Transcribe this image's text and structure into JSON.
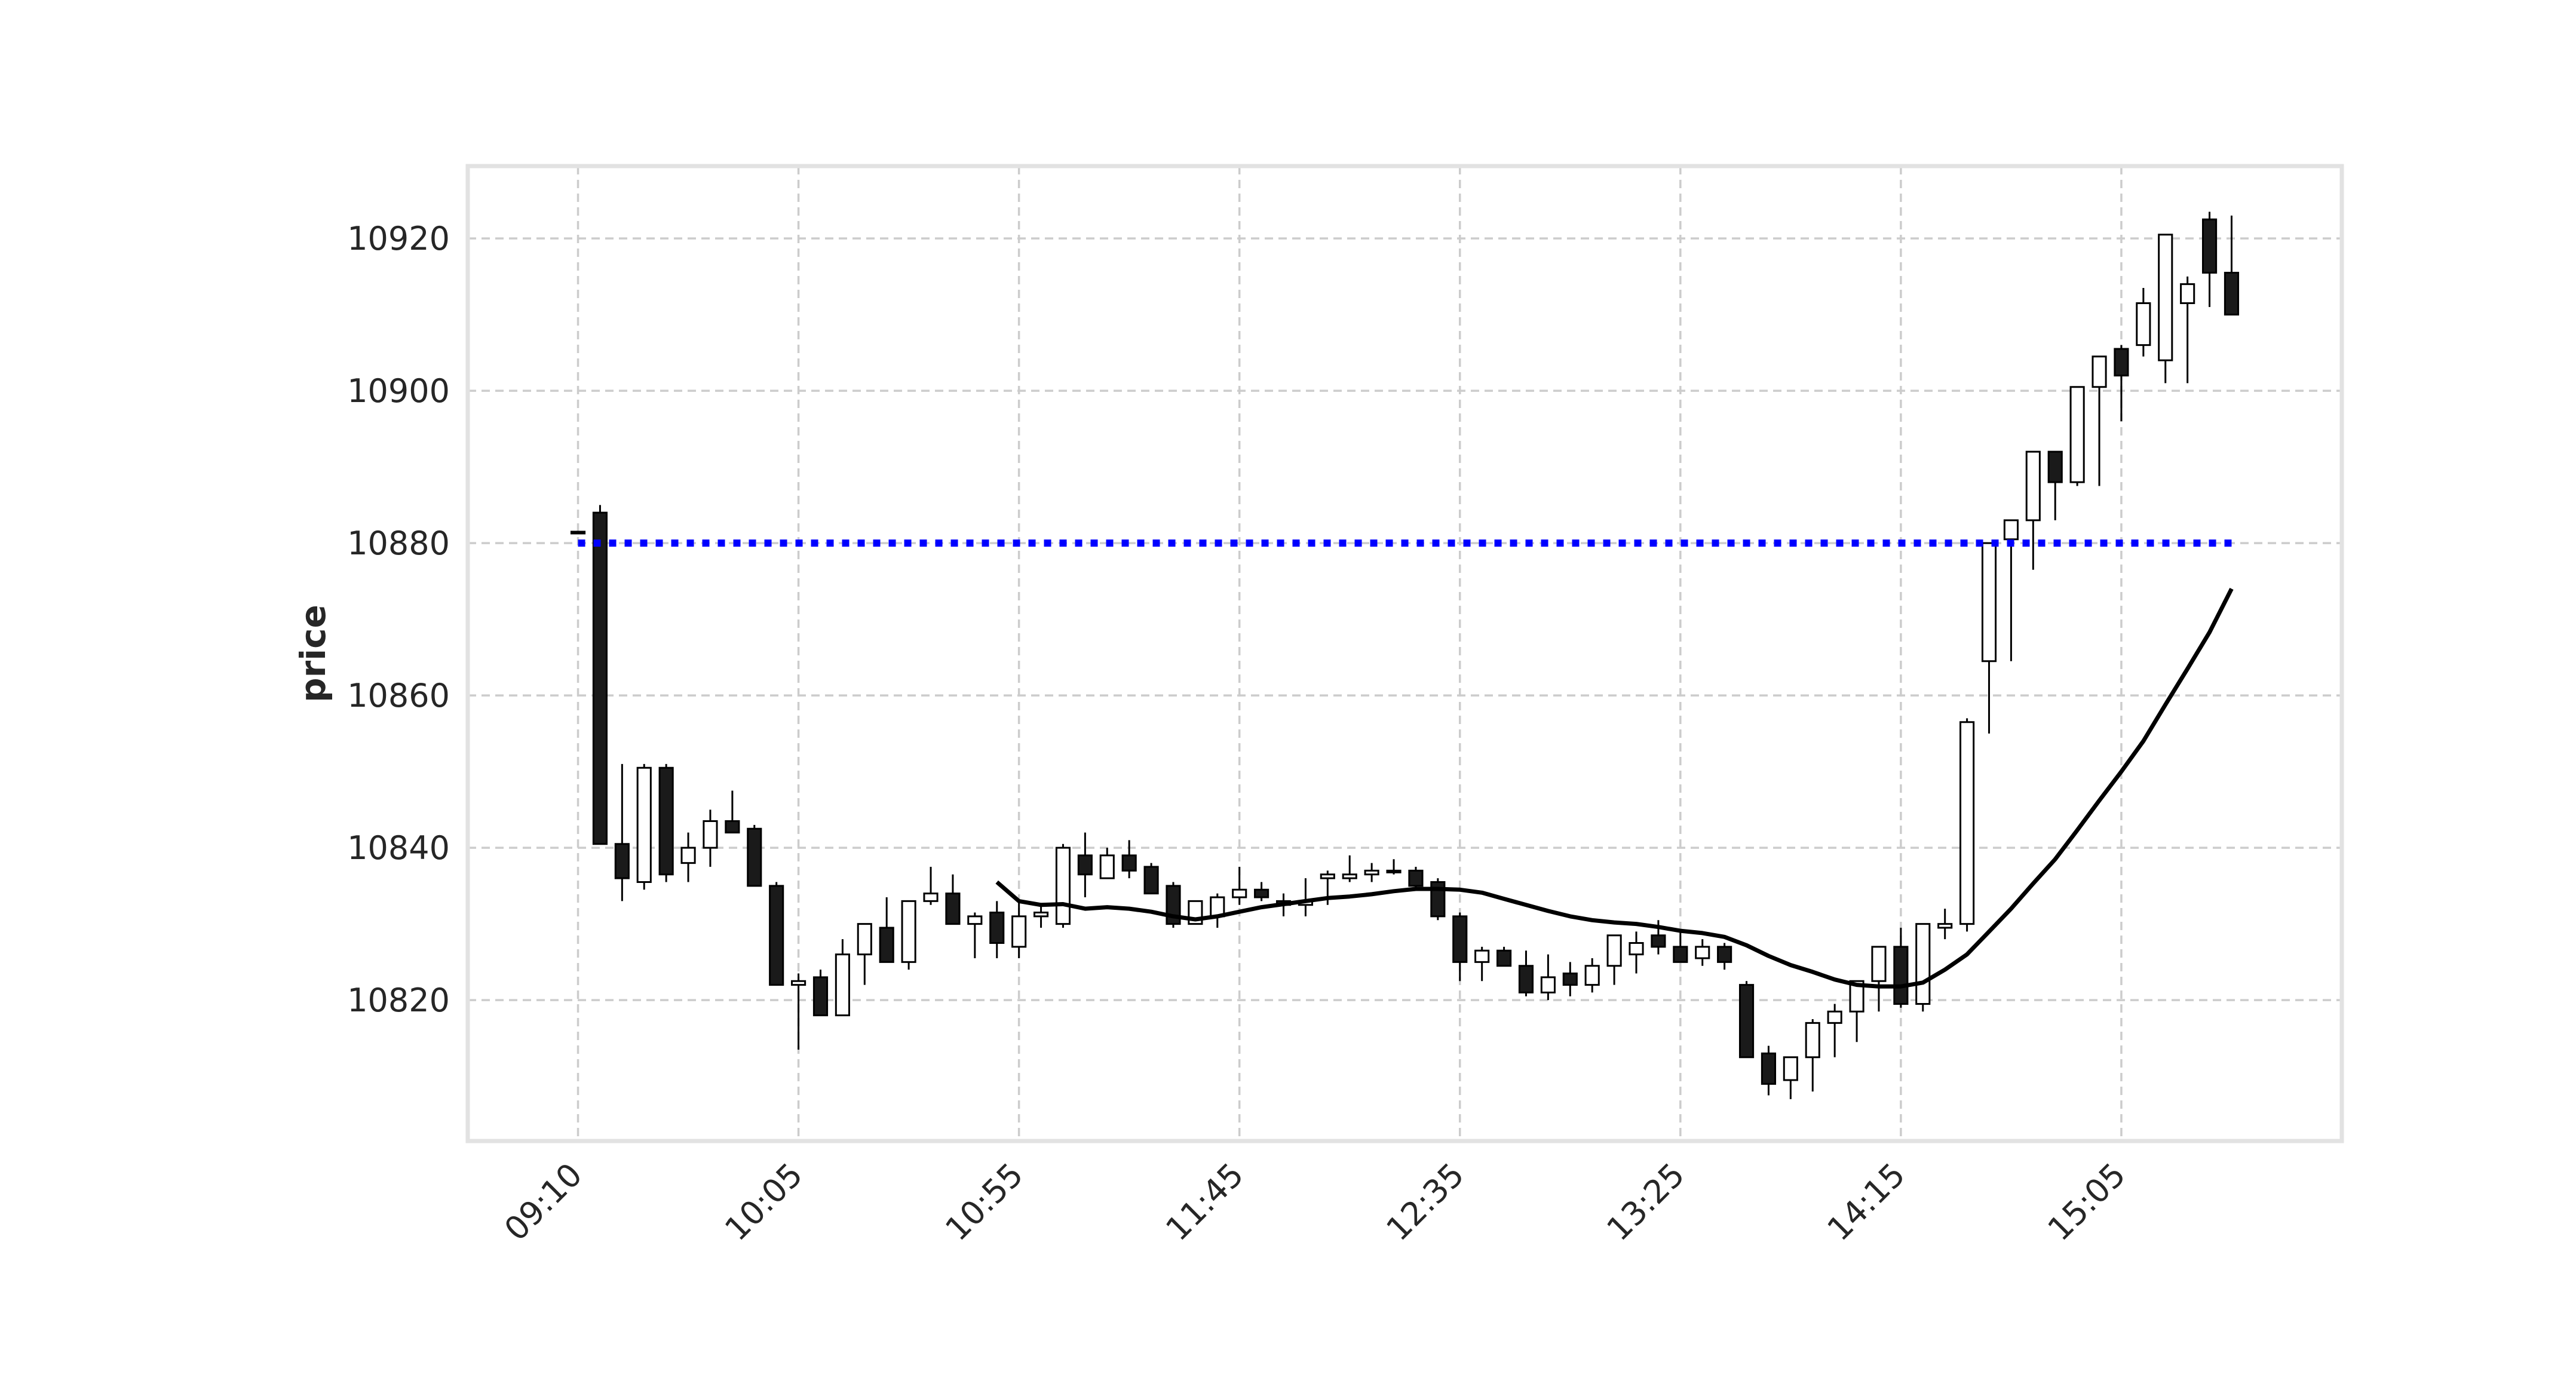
{
  "chart_data": {
    "type": "candlestick",
    "title": "",
    "xlabel": "",
    "ylabel": "price",
    "grid": true,
    "ylim": [
      10801.5,
      10929.5
    ],
    "yticks": [
      10820,
      10840,
      10860,
      10880,
      10900,
      10920
    ],
    "xticks": [
      "09:10",
      "10:05",
      "10:55",
      "11:45",
      "12:35",
      "13:25",
      "14:15",
      "15:05"
    ],
    "xtick_positions": [
      0,
      10,
      20,
      30,
      40,
      50,
      60,
      70
    ],
    "xlim": [
      -5,
      80
    ],
    "colors": {
      "up_fill": "#ffffff",
      "down_fill": "#1a1a1a",
      "outline": "#000000",
      "moving_average": "#000000",
      "reference_line": "#0000ff"
    },
    "reference_line": {
      "value": 10880,
      "style": "dotted",
      "x_start": 0,
      "x_end": 75
    },
    "moving_average": {
      "x": [
        19,
        20,
        21,
        22,
        23,
        24,
        25,
        26,
        27,
        28,
        29,
        30,
        31,
        32,
        33,
        34,
        35,
        36,
        37,
        38,
        39,
        40,
        41,
        42,
        43,
        44,
        45,
        46,
        47,
        48,
        49,
        50,
        51,
        52,
        53,
        54,
        55,
        56,
        57,
        58,
        59,
        60,
        61,
        62,
        63,
        64,
        65,
        66,
        67,
        68,
        69,
        70,
        71,
        72,
        73,
        74,
        75
      ],
      "values": [
        10835.5,
        10833.0,
        10832.5,
        10832.6,
        10832.0,
        10832.2,
        10832.0,
        10831.6,
        10831.0,
        10830.6,
        10831.0,
        10831.6,
        10832.2,
        10832.6,
        10833.0,
        10833.4,
        10833.6,
        10833.9,
        10834.3,
        10834.6,
        10834.6,
        10834.5,
        10834.1,
        10833.3,
        10832.5,
        10831.7,
        10831.0,
        10830.5,
        10830.2,
        10830.0,
        10829.6,
        10829.1,
        10828.8,
        10828.3,
        10827.2,
        10825.8,
        10824.6,
        10823.7,
        10822.7,
        10822.0,
        10821.8,
        10821.8,
        10822.3,
        10824.0,
        10826.0,
        10829.0,
        10832.0,
        10835.3,
        10838.5,
        10842.3,
        10846.2,
        10850.0,
        10854.0,
        10858.8,
        10863.5,
        10868.3,
        10874.0
      ]
    },
    "candles": {
      "x": [
        0,
        1,
        2,
        3,
        4,
        5,
        6,
        7,
        8,
        9,
        10,
        11,
        12,
        13,
        14,
        15,
        16,
        17,
        18,
        19,
        20,
        21,
        22,
        23,
        24,
        25,
        26,
        27,
        28,
        29,
        30,
        31,
        32,
        33,
        34,
        35,
        36,
        37,
        38,
        39,
        40,
        41,
        42,
        43,
        44,
        45,
        46,
        47,
        48,
        49,
        50,
        51,
        52,
        53,
        54,
        55,
        56,
        57,
        58,
        59,
        60,
        61,
        62,
        63,
        64,
        65,
        66,
        67,
        68,
        69,
        70,
        71,
        72,
        73,
        74,
        75
      ],
      "open": [
        10881.5,
        10884.0,
        10840.5,
        10835.5,
        10850.5,
        10838.0,
        10840.0,
        10843.5,
        10842.5,
        10835.0,
        10822.0,
        10823.0,
        10818.0,
        10826.0,
        10829.5,
        10825.0,
        10833.0,
        10834.0,
        10830.0,
        10831.5,
        10827.0,
        10831.0,
        10830.0,
        10839.0,
        10836.0,
        10839.0,
        10837.5,
        10835.0,
        10830.0,
        10831.0,
        10833.5,
        10834.5,
        10833.0,
        10832.5,
        10836.0,
        10836.0,
        10836.5,
        10837.0,
        10837.0,
        10835.5,
        10831.0,
        10825.0,
        10826.5,
        10824.5,
        10821.0,
        10823.5,
        10822.0,
        10824.5,
        10826.0,
        10828.5,
        10827.0,
        10825.5,
        10827.0,
        10822.0,
        10813.0,
        10809.5,
        10812.5,
        10817.0,
        10818.5,
        10822.5,
        10827.0,
        10819.5,
        10829.5,
        10830.0,
        10864.5,
        10880.5,
        10883.0,
        10892.0,
        10888.0,
        10900.5,
        10905.5,
        10906.0,
        10904.0,
        10911.5,
        10922.5,
        10915.5
      ],
      "high": [
        10881.5,
        10885.0,
        10851.0,
        10851.0,
        10851.0,
        10842.0,
        10845.0,
        10847.5,
        10843.0,
        10835.5,
        10823.5,
        10824.0,
        10828.0,
        10830.0,
        10833.5,
        10833.0,
        10837.5,
        10836.5,
        10831.5,
        10833.0,
        10833.0,
        10832.5,
        10840.5,
        10842.0,
        10840.0,
        10841.0,
        10838.0,
        10835.5,
        10833.0,
        10834.0,
        10837.5,
        10835.5,
        10834.0,
        10836.0,
        10837.0,
        10839.0,
        10838.0,
        10838.5,
        10837.5,
        10836.0,
        10831.5,
        10827.0,
        10827.0,
        10826.5,
        10826.0,
        10825.0,
        10825.5,
        10828.0,
        10829.0,
        10830.5,
        10829.0,
        10828.0,
        10827.5,
        10822.5,
        10814.0,
        10811.5,
        10817.5,
        10819.5,
        10822.0,
        10827.0,
        10829.5,
        10830.0,
        10832.0,
        10857.0,
        10873.5,
        10882.5,
        10888.0,
        10892.0,
        10892.5,
        10903.0,
        10906.0,
        10913.5,
        10910.5,
        10915.0,
        10923.5,
        10923.0
      ],
      "low": [
        10881.5,
        10840.5,
        10833.0,
        10834.5,
        10835.5,
        10835.5,
        10837.5,
        10842.5,
        10835.0,
        10822.0,
        10813.5,
        10818.0,
        10818.0,
        10822.0,
        10825.0,
        10824.0,
        10832.5,
        10830.0,
        10825.5,
        10825.5,
        10825.5,
        10829.5,
        10829.5,
        10833.5,
        10836.0,
        10836.0,
        10834.5,
        10829.5,
        10830.0,
        10829.5,
        10832.5,
        10833.0,
        10831.0,
        10831.0,
        10832.5,
        10835.5,
        10835.5,
        10836.5,
        10834.5,
        10830.5,
        10822.5,
        10822.5,
        10825.0,
        10820.5,
        10820.0,
        10820.5,
        10821.0,
        10822.0,
        10823.5,
        10826.0,
        10826.0,
        10824.5,
        10824.0,
        10818.5,
        10807.5,
        10807.0,
        10808.0,
        10812.5,
        10814.5,
        10818.5,
        10819.0,
        10818.5,
        10828.0,
        10829.0,
        10855.0,
        10864.5,
        10876.5,
        10883.0,
        10887.5,
        10887.5,
        10896.0,
        10904.5,
        10901.0,
        10901.0,
        10911.0,
        10910.0
      ],
      "close": [
        10881.5,
        10840.5,
        10836.0,
        10850.5,
        10836.5,
        10840.0,
        10843.5,
        10842.0,
        10835.0,
        10822.0,
        10822.5,
        10818.0,
        10826.0,
        10830.0,
        10825.0,
        10833.0,
        10834.0,
        10830.0,
        10831.0,
        10827.5,
        10831.0,
        10831.5,
        10840.0,
        10836.5,
        10839.0,
        10837.0,
        10834.0,
        10830.0,
        10833.0,
        10833.5,
        10834.5,
        10833.5,
        10832.5,
        10833.0,
        10836.5,
        10836.5,
        10837.0,
        10837.0,
        10835.0,
        10831.0,
        10825.0,
        10826.5,
        10824.5,
        10821.0,
        10823.0,
        10822.0,
        10824.5,
        10828.5,
        10827.5,
        10827.0,
        10825.0,
        10827.0,
        10825.0,
        10812.5,
        10809.0,
        10812.5,
        10817.0,
        10818.5,
        10822.5,
        10827.0,
        10819.5,
        10830.0,
        10830.0,
        10856.5,
        10880.0,
        10883.0,
        10892.0,
        10888.0,
        10900.5,
        10904.5,
        10902.0,
        10911.5,
        10920.5,
        10914.0,
        10915.5,
        10910.0
      ]
    }
  }
}
